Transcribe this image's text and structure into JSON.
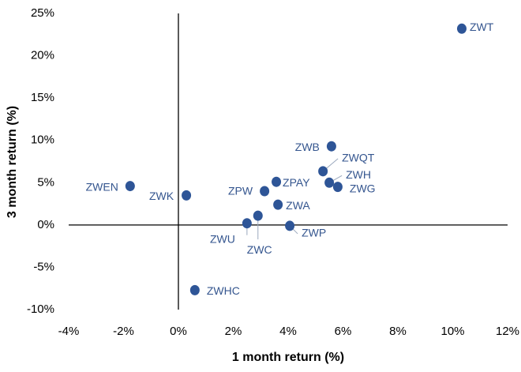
{
  "chart_data": {
    "type": "scatter",
    "xlabel": "1 month return (%)",
    "ylabel": "3 month return (%)",
    "labels": [
      "ZWT",
      "ZWB",
      "ZWQT",
      "ZWH",
      "ZWG",
      "ZPAY",
      "ZPW",
      "ZWA",
      "ZWP",
      "ZWU",
      "ZWC",
      "ZWEN",
      "ZWK",
      "ZWHC"
    ],
    "x": [
      10.33,
      5.58,
      5.27,
      5.5,
      5.81,
      3.57,
      3.14,
      3.63,
      4.06,
      2.5,
      2.9,
      -1.76,
      0.29,
      0.6
    ],
    "values": [
      23.2,
      9.3,
      6.35,
      5.0,
      4.5,
      5.1,
      4.0,
      2.4,
      -0.1,
      0.2,
      1.1,
      4.6,
      3.5,
      -7.7
    ],
    "color": "#2e5597",
    "xlim": [
      -4,
      12
    ],
    "ylim": [
      -10,
      25
    ],
    "xticks": [
      {
        "value": -4,
        "label": "-4%"
      },
      {
        "value": -2,
        "label": "-2%"
      },
      {
        "value": 0,
        "label": "0%"
      },
      {
        "value": 2,
        "label": "2%"
      },
      {
        "value": 4,
        "label": "4%"
      },
      {
        "value": 6,
        "label": "6%"
      },
      {
        "value": 8,
        "label": "8%"
      },
      {
        "value": 10,
        "label": "10%"
      },
      {
        "value": 12,
        "label": "12%"
      }
    ],
    "yticks": [
      {
        "value": -10,
        "label": "-10%"
      },
      {
        "value": -5,
        "label": "-5%"
      },
      {
        "value": 0,
        "label": "0%"
      },
      {
        "value": 5,
        "label": "5%"
      },
      {
        "value": 10,
        "label": "10%"
      },
      {
        "value": 15,
        "label": "15%"
      },
      {
        "value": 20,
        "label": "20%"
      },
      {
        "value": 25,
        "label": "25%"
      }
    ]
  }
}
